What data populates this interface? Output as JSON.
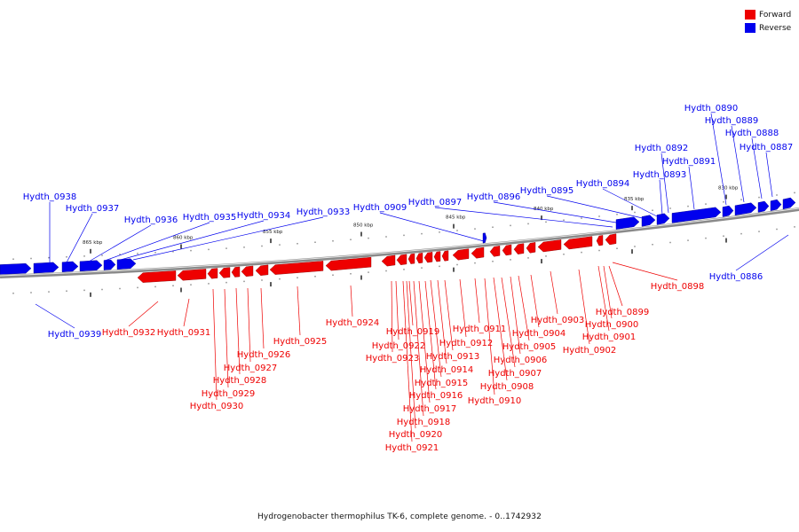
{
  "legend": {
    "forward_label": "Forward",
    "reverse_label": "Reverse",
    "forward_color": "#ee0000",
    "reverse_color": "#0000ee"
  },
  "caption": "Hydrogenobacter thermophilus TK-6, complete genome. - 0..1742932",
  "scale_ticks": [
    "830 kbp",
    "835 kbp",
    "840 kbp",
    "845 kbp",
    "850 kbp",
    "855 kbp",
    "860 kbp",
    "865 kbp"
  ],
  "genes_reverse": [
    "Hydth_0886",
    "Hydth_0887",
    "Hydth_0888",
    "Hydth_0889",
    "Hydth_0890",
    "Hydth_0891",
    "Hydth_0892",
    "Hydth_0893",
    "Hydth_0894",
    "Hydth_0895",
    "Hydth_0896",
    "Hydth_0897",
    "Hydth_0909",
    "Hydth_0933",
    "Hydth_0934",
    "Hydth_0935",
    "Hydth_0936",
    "Hydth_0937",
    "Hydth_0938",
    "Hydth_0939"
  ],
  "genes_forward": [
    "Hydth_0898",
    "Hydth_0899",
    "Hydth_0900",
    "Hydth_0901",
    "Hydth_0902",
    "Hydth_0903",
    "Hydth_0904",
    "Hydth_0905",
    "Hydth_0906",
    "Hydth_0907",
    "Hydth_0908",
    "Hydth_0910",
    "Hydth_0911",
    "Hydth_0912",
    "Hydth_0913",
    "Hydth_0914",
    "Hydth_0915",
    "Hydth_0916",
    "Hydth_0917",
    "Hydth_0918",
    "Hydth_0919",
    "Hydth_0920",
    "Hydth_0921",
    "Hydth_0922",
    "Hydth_0923",
    "Hydth_0924",
    "Hydth_0925",
    "Hydth_0926",
    "Hydth_0927",
    "Hydth_0928",
    "Hydth_0929",
    "Hydth_0930",
    "Hydth_0931",
    "Hydth_0932"
  ]
}
